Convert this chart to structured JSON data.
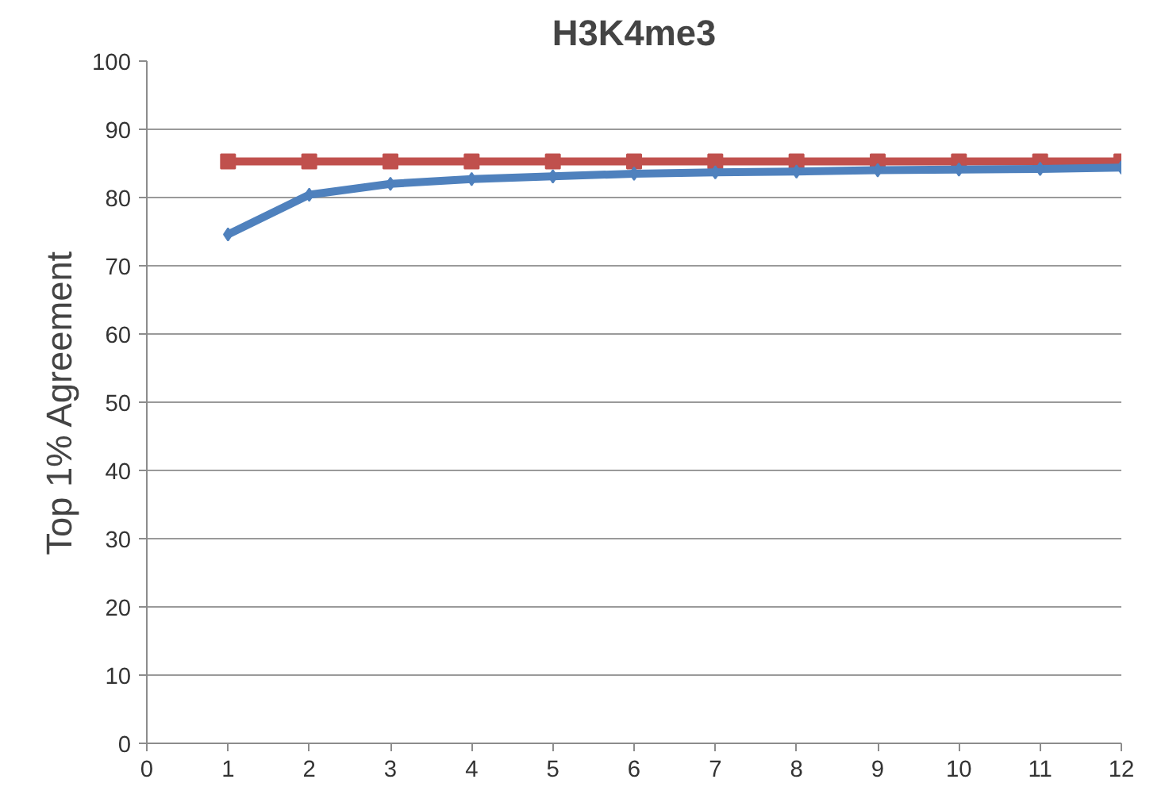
{
  "chart_data": {
    "type": "line",
    "title": "H3K4me3",
    "ylabel": "Top 1% Agreement",
    "x": [
      1,
      2,
      3,
      4,
      5,
      6,
      7,
      8,
      9,
      10,
      11,
      12
    ],
    "series": [
      {
        "color": "#c0504d",
        "marker": "square",
        "values": [
          85.3,
          85.3,
          85.3,
          85.3,
          85.3,
          85.3,
          85.3,
          85.3,
          85.3,
          85.3,
          85.3,
          85.3
        ]
      },
      {
        "color": "#4f81bd",
        "marker": "diamond",
        "values": [
          74.6,
          80.4,
          82.0,
          82.7,
          83.1,
          83.5,
          83.7,
          83.8,
          84.0,
          84.1,
          84.2,
          84.4
        ]
      }
    ],
    "xlim": [
      0,
      12
    ],
    "xticks": [
      0,
      1,
      2,
      3,
      4,
      5,
      6,
      7,
      8,
      9,
      10,
      11,
      12
    ],
    "ylim": [
      0,
      100
    ],
    "yticks": [
      0,
      10,
      20,
      30,
      40,
      50,
      60,
      70,
      80,
      90,
      100
    ],
    "grid": "y"
  }
}
